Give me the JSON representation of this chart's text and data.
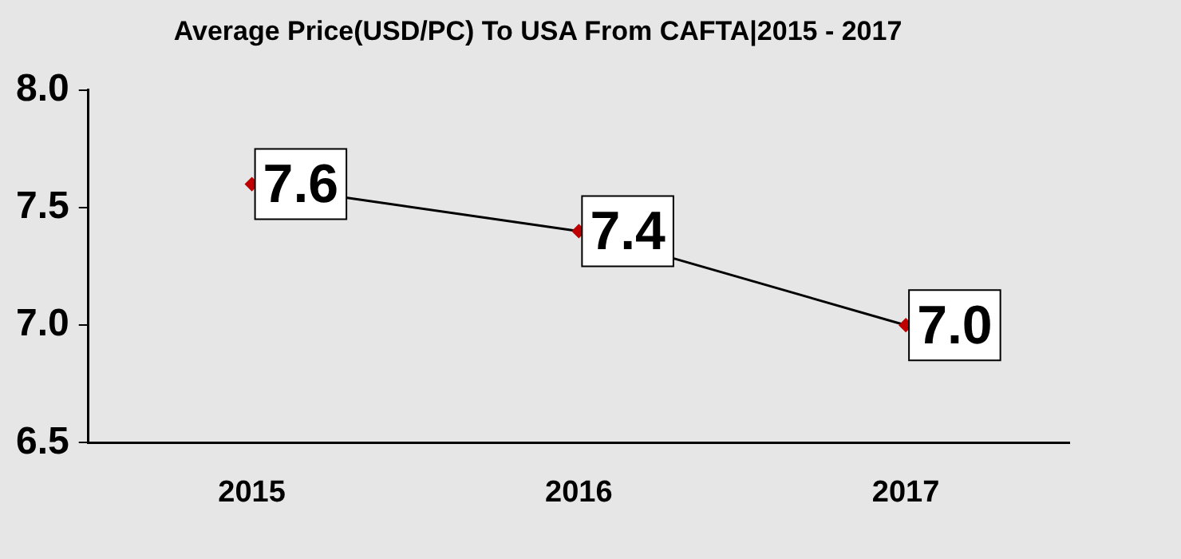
{
  "chart_data": {
    "type": "line",
    "title": "Average Price(USD/PC) To USA From CAFTA|2015 - 2017",
    "categories": [
      "2015",
      "2016",
      "2017"
    ],
    "series": [
      {
        "color": "#000000",
        "colors": [
          "#c00000",
          "#c00000",
          "#c00000"
        ],
        "values": [
          7.6,
          7.4,
          7.0
        ],
        "value_labels": [
          "7.6",
          "7.4",
          "7.0"
        ]
      }
    ],
    "ylim": [
      6.5,
      8.0
    ],
    "yticks": [
      {
        "value": 6.5,
        "label": "6.5"
      },
      {
        "value": 7,
        "label": "7.0"
      },
      {
        "value": 7.5,
        "label": "7.5"
      },
      {
        "value": 8,
        "label": "8.0"
      }
    ],
    "grid": false,
    "legend": false,
    "marker": "diamond",
    "line_style": "solid"
  }
}
